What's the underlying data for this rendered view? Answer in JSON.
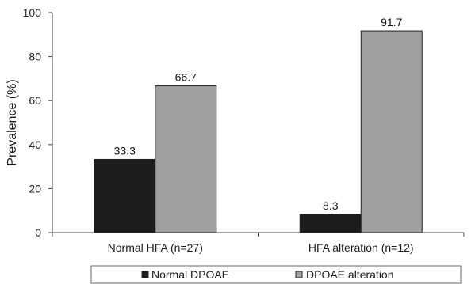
{
  "chart_data": {
    "type": "bar",
    "categories": [
      "Normal HFA (n=27)",
      "HFA alteration (n=12)"
    ],
    "series": [
      {
        "name": "Normal DPOAE",
        "values": [
          33.3,
          8.3
        ],
        "color": "#1c1c1c"
      },
      {
        "name": "DPOAE alteration",
        "values": [
          66.7,
          91.7
        ],
        "color": "#a0a0a0"
      }
    ],
    "data_labels": [
      [
        "33.3",
        "8.3"
      ],
      [
        "66.7",
        "91.7"
      ]
    ],
    "ylabel": "Prevalence (%)",
    "xlabel": "",
    "title": "",
    "ylim": [
      0,
      100
    ],
    "yticks": [
      0,
      20,
      40,
      60,
      80,
      100
    ],
    "grid": false,
    "legend_position": "bottom"
  }
}
